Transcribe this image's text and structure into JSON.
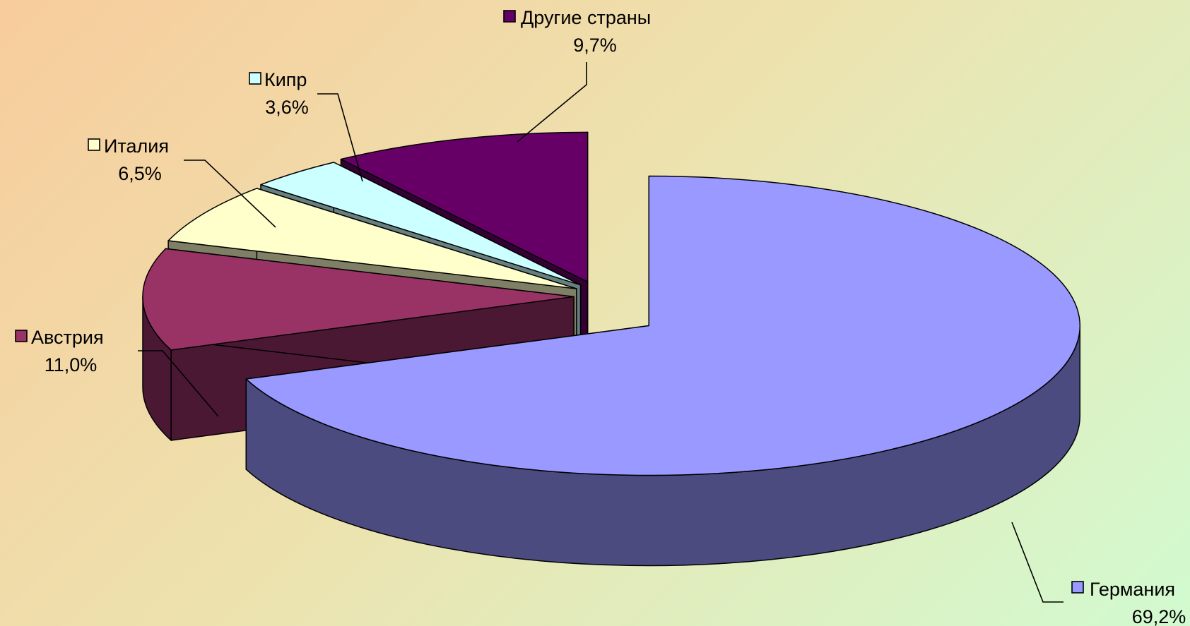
{
  "chart_data": {
    "type": "pie",
    "style": "3d-exploded",
    "slices": [
      {
        "label": "Германия",
        "value_label": "69,2%",
        "value": 69.2,
        "color": "#9999ff",
        "side_color": "#4b4b7f"
      },
      {
        "label": "Австрия",
        "value_label": "11,0%",
        "value": 11.0,
        "color": "#993366",
        "side_color": "#4b1834"
      },
      {
        "label": "Италия",
        "value_label": "6,5%",
        "value": 6.5,
        "color": "#ffffcc",
        "side_color": "#7f7f66"
      },
      {
        "label": "Кипр",
        "value_label": "3,6%",
        "value": 3.6,
        "color": "#ccffff",
        "side_color": "#667f7f"
      },
      {
        "label": "Другие страны",
        "value_label": "9,7%",
        "value": 9.7,
        "color": "#660066",
        "side_color": "#330033"
      }
    ]
  }
}
